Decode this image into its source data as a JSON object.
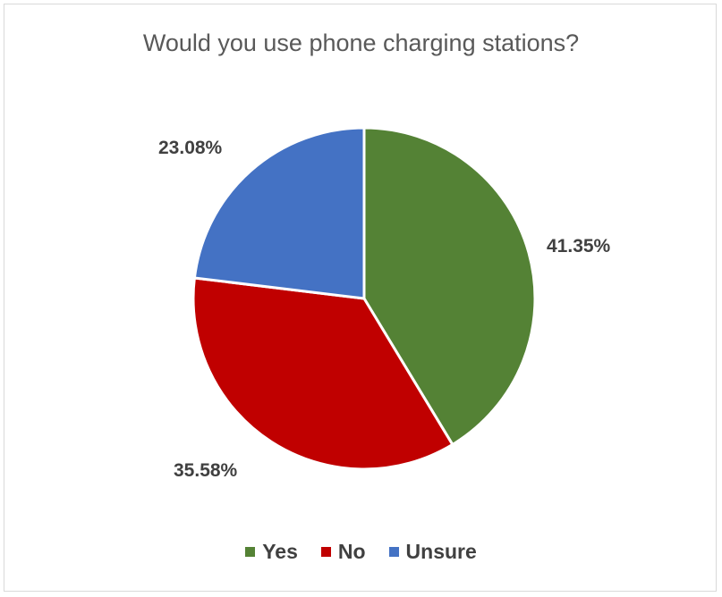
{
  "chart_data": {
    "type": "pie",
    "title": "Would you use phone charging stations?",
    "categories": [
      "Yes",
      "No",
      "Unsure"
    ],
    "values": [
      41.35,
      35.58,
      23.08
    ],
    "data_labels": [
      "41.35%",
      "35.58%",
      "23.08%"
    ],
    "colors": [
      "#548235",
      "#c00000",
      "#4472c4"
    ],
    "legend_position": "bottom",
    "start_angle": "12 o'clock, clockwise"
  }
}
